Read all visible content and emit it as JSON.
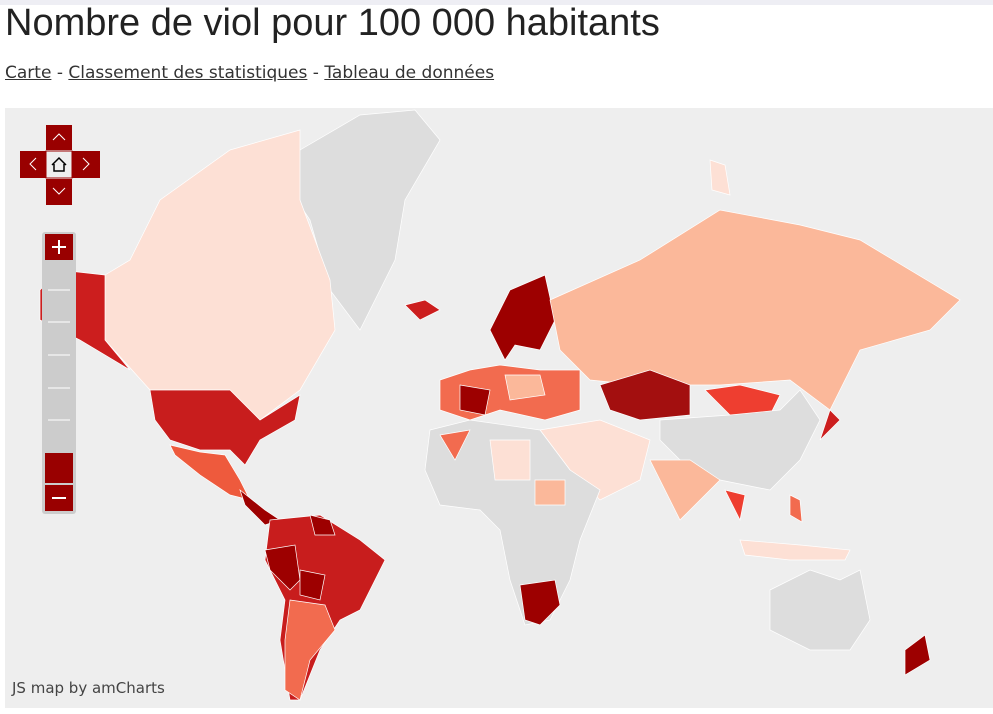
{
  "header": {
    "title": "Nombre de viol pour 100 000 habitants"
  },
  "nav": {
    "links": [
      "Carte",
      "Classement des statistiques",
      "Tableau de données"
    ],
    "separator": "-"
  },
  "map": {
    "credit": "JS map by amCharts"
  }
}
